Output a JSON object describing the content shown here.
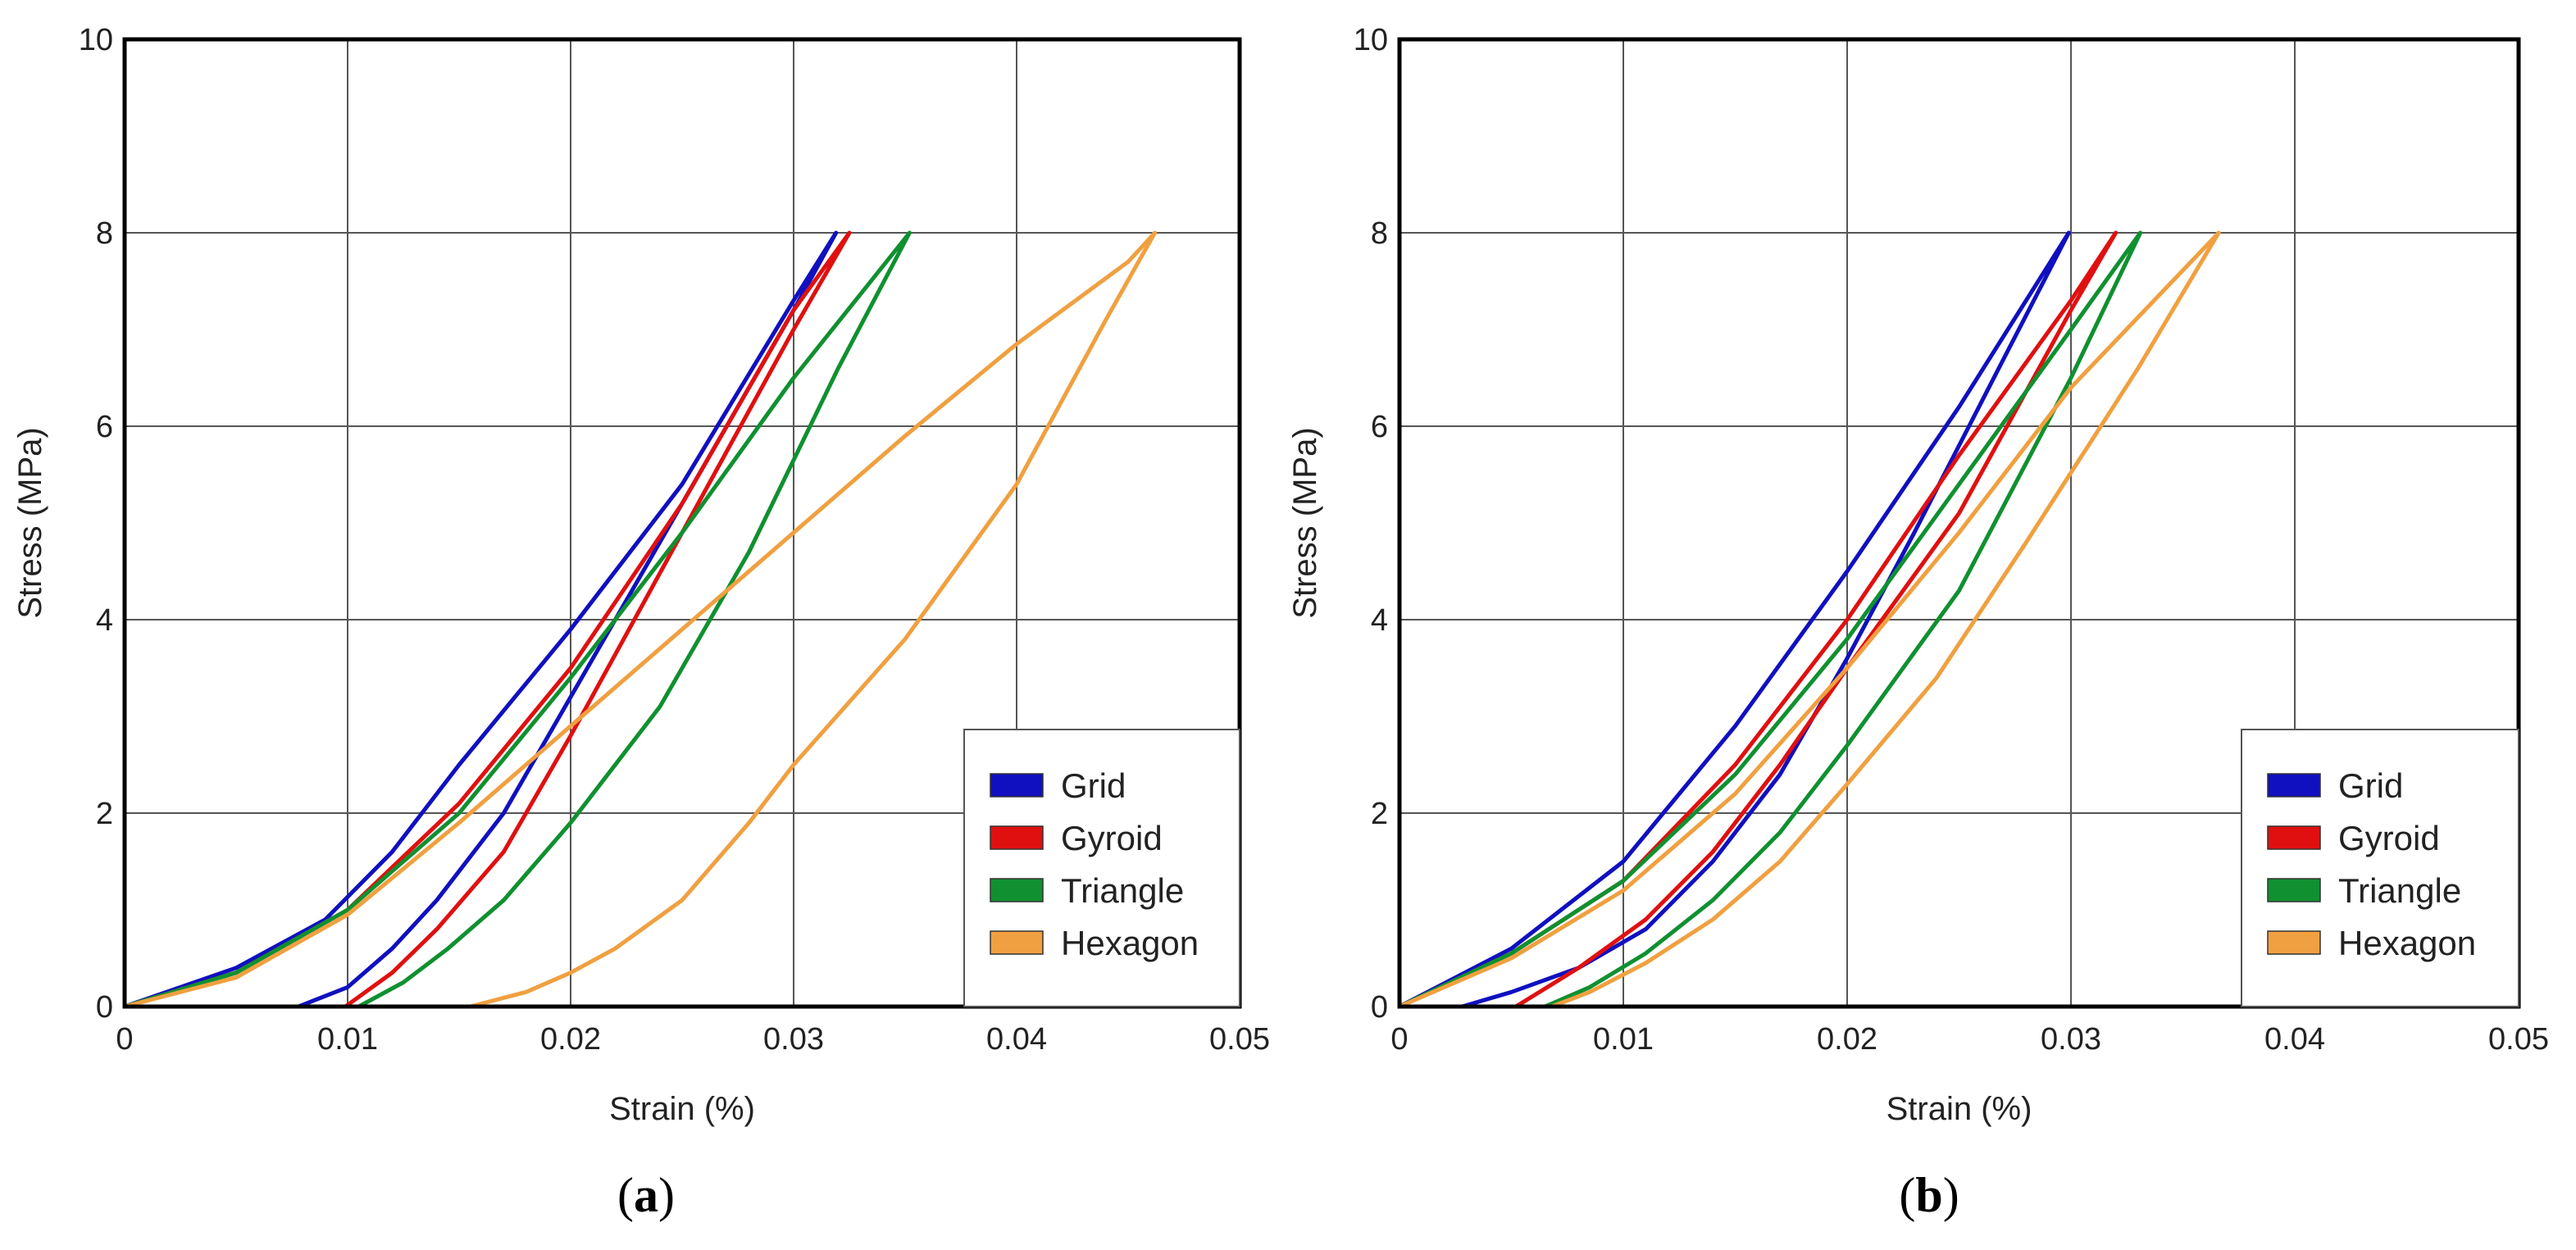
{
  "chart_data": [
    {
      "type": "line",
      "panel_label": "a",
      "xlabel": "Strain (%)",
      "ylabel": "Stress (MPa)",
      "xlim": [
        0,
        0.05
      ],
      "ylim": [
        0,
        10
      ],
      "xticks": [
        "0",
        "0.01",
        "0.02",
        "0.03",
        "0.04",
        "0.05"
      ],
      "yticks": [
        "0",
        "2",
        "4",
        "6",
        "8",
        "10"
      ],
      "grid": true,
      "legend_position": "lower-right",
      "series": [
        {
          "name": "Grid",
          "color": "#1010c0",
          "points": [
            [
              0,
              0
            ],
            [
              0.005,
              0.4
            ],
            [
              0.009,
              0.9
            ],
            [
              0.012,
              1.6
            ],
            [
              0.015,
              2.5
            ],
            [
              0.02,
              3.9
            ],
            [
              0.025,
              5.4
            ],
            [
              0.03,
              7.3
            ],
            [
              0.0319,
              8
            ],
            [
              0.03,
              7.2
            ],
            [
              0.025,
              5.2
            ],
            [
              0.02,
              3.2
            ],
            [
              0.017,
              2.0
            ],
            [
              0.014,
              1.1
            ],
            [
              0.012,
              0.6
            ],
            [
              0.01,
              0.2
            ],
            [
              0.0078,
              0
            ]
          ]
        },
        {
          "name": "Gyroid",
          "color": "#e01010",
          "points": [
            [
              0,
              0
            ],
            [
              0.005,
              0.35
            ],
            [
              0.01,
              1.0
            ],
            [
              0.015,
              2.1
            ],
            [
              0.02,
              3.5
            ],
            [
              0.025,
              5.2
            ],
            [
              0.03,
              7.2
            ],
            [
              0.0325,
              8
            ],
            [
              0.03,
              7.0
            ],
            [
              0.025,
              4.9
            ],
            [
              0.02,
              2.8
            ],
            [
              0.017,
              1.6
            ],
            [
              0.014,
              0.8
            ],
            [
              0.012,
              0.35
            ],
            [
              0.0099,
              0
            ]
          ]
        },
        {
          "name": "Triangle",
          "color": "#109030",
          "points": [
            [
              0,
              0
            ],
            [
              0.005,
              0.35
            ],
            [
              0.01,
              1.0
            ],
            [
              0.015,
              2.0
            ],
            [
              0.02,
              3.4
            ],
            [
              0.025,
              4.9
            ],
            [
              0.03,
              6.5
            ],
            [
              0.0352,
              8
            ],
            [
              0.032,
              6.6
            ],
            [
              0.028,
              4.7
            ],
            [
              0.024,
              3.1
            ],
            [
              0.02,
              1.9
            ],
            [
              0.017,
              1.1
            ],
            [
              0.0145,
              0.6
            ],
            [
              0.0125,
              0.25
            ],
            [
              0.0105,
              0
            ]
          ]
        },
        {
          "name": "Hexagon",
          "color": "#f0a040",
          "points": [
            [
              0,
              0
            ],
            [
              0.005,
              0.3
            ],
            [
              0.01,
              0.95
            ],
            [
              0.015,
              1.9
            ],
            [
              0.02,
              2.9
            ],
            [
              0.025,
              3.9
            ],
            [
              0.03,
              4.9
            ],
            [
              0.035,
              5.9
            ],
            [
              0.04,
              6.85
            ],
            [
              0.045,
              7.7
            ],
            [
              0.0462,
              8
            ],
            [
              0.044,
              7.1
            ],
            [
              0.04,
              5.4
            ],
            [
              0.035,
              3.8
            ],
            [
              0.03,
              2.5
            ],
            [
              0.028,
              1.9
            ],
            [
              0.025,
              1.1
            ],
            [
              0.022,
              0.6
            ],
            [
              0.02,
              0.35
            ],
            [
              0.018,
              0.15
            ],
            [
              0.0155,
              0
            ]
          ]
        }
      ]
    },
    {
      "type": "line",
      "panel_label": "b",
      "xlabel": "Strain (%)",
      "ylabel": "Stress (MPa)",
      "xlim": [
        0,
        0.05
      ],
      "ylim": [
        0,
        10
      ],
      "xticks": [
        "0",
        "0.01",
        "0.02",
        "0.03",
        "0.04",
        "0.05"
      ],
      "yticks": [
        "0",
        "2",
        "4",
        "6",
        "8",
        "10"
      ],
      "grid": true,
      "legend_position": "lower-right",
      "series": [
        {
          "name": "Grid",
          "color": "#1010c0",
          "points": [
            [
              0,
              0
            ],
            [
              0.005,
              0.6
            ],
            [
              0.01,
              1.5
            ],
            [
              0.015,
              2.9
            ],
            [
              0.02,
              4.5
            ],
            [
              0.025,
              6.2
            ],
            [
              0.0299,
              8
            ],
            [
              0.027,
              6.7
            ],
            [
              0.023,
              4.9
            ],
            [
              0.02,
              3.6
            ],
            [
              0.017,
              2.4
            ],
            [
              0.014,
              1.5
            ],
            [
              0.011,
              0.8
            ],
            [
              0.008,
              0.4
            ],
            [
              0.005,
              0.15
            ],
            [
              0.0028,
              0
            ]
          ]
        },
        {
          "name": "Gyroid",
          "color": "#e01010",
          "points": [
            [
              0,
              0
            ],
            [
              0.005,
              0.55
            ],
            [
              0.01,
              1.3
            ],
            [
              0.015,
              2.5
            ],
            [
              0.02,
              4.0
            ],
            [
              0.025,
              5.7
            ],
            [
              0.03,
              7.3
            ],
            [
              0.032,
              8
            ],
            [
              0.03,
              7.2
            ],
            [
              0.025,
              5.1
            ],
            [
              0.02,
              3.5
            ],
            [
              0.017,
              2.5
            ],
            [
              0.014,
              1.6
            ],
            [
              0.011,
              0.9
            ],
            [
              0.008,
              0.4
            ],
            [
              0.0052,
              0
            ]
          ]
        },
        {
          "name": "Triangle",
          "color": "#109030",
          "points": [
            [
              0,
              0
            ],
            [
              0.005,
              0.55
            ],
            [
              0.01,
              1.3
            ],
            [
              0.015,
              2.4
            ],
            [
              0.02,
              3.8
            ],
            [
              0.025,
              5.4
            ],
            [
              0.03,
              7.0
            ],
            [
              0.0331,
              8
            ],
            [
              0.03,
              6.5
            ],
            [
              0.025,
              4.3
            ],
            [
              0.02,
              2.7
            ],
            [
              0.017,
              1.8
            ],
            [
              0.014,
              1.1
            ],
            [
              0.011,
              0.55
            ],
            [
              0.0085,
              0.2
            ],
            [
              0.0065,
              0
            ]
          ]
        },
        {
          "name": "Hexagon",
          "color": "#f0a040",
          "points": [
            [
              0,
              0
            ],
            [
              0.005,
              0.5
            ],
            [
              0.01,
              1.2
            ],
            [
              0.015,
              2.2
            ],
            [
              0.02,
              3.5
            ],
            [
              0.025,
              4.9
            ],
            [
              0.03,
              6.4
            ],
            [
              0.0366,
              8
            ],
            [
              0.033,
              6.6
            ],
            [
              0.028,
              4.8
            ],
            [
              0.024,
              3.4
            ],
            [
              0.02,
              2.3
            ],
            [
              0.017,
              1.5
            ],
            [
              0.014,
              0.9
            ],
            [
              0.011,
              0.45
            ],
            [
              0.0085,
              0.15
            ],
            [
              0.0068,
              0
            ]
          ]
        }
      ]
    }
  ]
}
